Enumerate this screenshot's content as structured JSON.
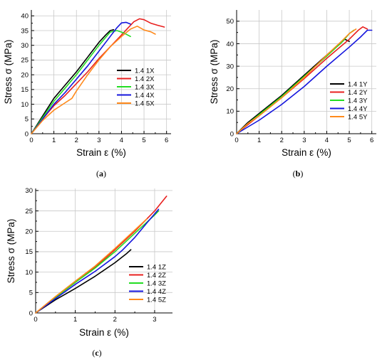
{
  "chart_data": [
    {
      "type": "line",
      "panel_label": "(a)",
      "panel_letter": "a",
      "xlabel": "Strain ε (%)",
      "ylabel": "Stress σ (MPa)",
      "xlim": [
        0,
        6.2
      ],
      "ylim": [
        0,
        42
      ],
      "xticks": [
        0,
        1,
        2,
        3,
        4,
        5,
        6
      ],
      "yticks": [
        0,
        5,
        10,
        15,
        20,
        25,
        30,
        35,
        40
      ],
      "grid": true,
      "legend_position": "center-right",
      "series": [
        {
          "name": "1.4 1X",
          "color": "#000000",
          "x": [
            0,
            0.5,
            1,
            1.5,
            2,
            2.5,
            3,
            3.3,
            3.5,
            3.65
          ],
          "y": [
            0,
            6,
            12,
            16.5,
            21,
            26,
            31,
            33.5,
            35,
            35.3
          ]
        },
        {
          "name": "1.4 2X",
          "color": "#e8201f",
          "x": [
            0,
            0.5,
            1,
            1.5,
            2,
            2.5,
            3,
            3.5,
            4,
            4.3,
            4.55,
            4.8,
            5,
            5.3,
            5.6,
            5.9
          ],
          "y": [
            0,
            5,
            9.5,
            13,
            17,
            21,
            25.5,
            29.5,
            33.5,
            36,
            38,
            39,
            38.7,
            37.5,
            36.8,
            36.2
          ]
        },
        {
          "name": "1.4 3X",
          "color": "#22dd22",
          "x": [
            0,
            0.5,
            1,
            1.5,
            2,
            2.5,
            3,
            3.5,
            3.8,
            4.1,
            4.4
          ],
          "y": [
            0,
            5.5,
            11,
            15.5,
            20,
            25,
            30,
            34.5,
            35,
            34.2,
            33
          ]
        },
        {
          "name": "1.4 4X",
          "color": "#1515dd",
          "x": [
            0,
            0.5,
            1,
            1.5,
            2,
            2.5,
            3,
            3.5,
            3.8,
            4,
            4.2,
            4.4
          ],
          "y": [
            0,
            5,
            10,
            14,
            18.5,
            23,
            28,
            33,
            36,
            37.6,
            37.8,
            37.2
          ]
        },
        {
          "name": "1.4 5X",
          "color": "#ff8a1c",
          "x": [
            0,
            0.5,
            1,
            1.5,
            1.8,
            2,
            2.5,
            3,
            3.5,
            4,
            4.4,
            4.7,
            5,
            5.3,
            5.5
          ],
          "y": [
            0,
            4.5,
            8,
            10.5,
            12,
            14.5,
            20,
            25,
            29.5,
            33,
            35.5,
            36.5,
            35.2,
            34.6,
            33.8
          ]
        }
      ]
    },
    {
      "type": "line",
      "panel_label": "(b)",
      "panel_letter": "b",
      "xlabel": "Strain ε (%)",
      "ylabel": "Stress σ (MPa)",
      "xlim": [
        0,
        6.2
      ],
      "ylim": [
        0,
        55
      ],
      "xticks": [
        0,
        1,
        2,
        3,
        4,
        5,
        6
      ],
      "yticks": [
        0,
        10,
        20,
        30,
        40,
        50
      ],
      "grid": true,
      "legend_position": "center-right",
      "series": [
        {
          "name": "1.4 1Y",
          "color": "#000000",
          "x": [
            0,
            0.5,
            1,
            2,
            3,
            4,
            4.6,
            4.8,
            5.0
          ],
          "y": [
            0,
            5,
            9,
            17,
            26,
            35,
            40,
            42,
            41
          ]
        },
        {
          "name": "1.4 2Y",
          "color": "#e8201f",
          "x": [
            0,
            0.5,
            1,
            2,
            3,
            4,
            5,
            5.4,
            5.6,
            5.8
          ],
          "y": [
            0,
            4,
            8,
            16,
            24.5,
            33.5,
            42,
            46,
            47.5,
            46.5
          ]
        },
        {
          "name": "1.4 3Y",
          "color": "#22dd22",
          "x": [
            0,
            0.5,
            1,
            2,
            3,
            4,
            4.7,
            5.0,
            5.2
          ],
          "y": [
            0,
            4.5,
            8.5,
            16.5,
            25.5,
            34.5,
            41,
            44.5,
            46
          ]
        },
        {
          "name": "1.4 4Y",
          "color": "#1515dd",
          "x": [
            0,
            0.5,
            1,
            2,
            3,
            4,
            5,
            5.5,
            5.8,
            6.0
          ],
          "y": [
            0,
            3,
            6,
            13,
            21,
            30,
            38.5,
            43,
            46,
            46
          ]
        },
        {
          "name": "1.4 5Y",
          "color": "#ff8a1c",
          "x": [
            0,
            0.5,
            1,
            2,
            3,
            4,
            4.7,
            5.0,
            5.3
          ],
          "y": [
            0,
            4.5,
            8,
            16,
            25,
            35,
            41.5,
            44.5,
            46.5
          ]
        }
      ]
    },
    {
      "type": "line",
      "panel_label": "(c)",
      "panel_letter": "c",
      "xlabel": "Strain ε (%)",
      "ylabel": "Stress σ (MPa)",
      "xlim": [
        0,
        3.45
      ],
      "ylim": [
        0,
        30.5
      ],
      "xticks": [
        0,
        1,
        2,
        3
      ],
      "yticks": [
        0,
        5,
        10,
        15,
        20,
        25,
        30
      ],
      "grid": true,
      "legend_position": "center-right",
      "series": [
        {
          "name": "1.4 1Z",
          "color": "#000000",
          "x": [
            0,
            0.5,
            1,
            1.5,
            2,
            2.3,
            2.4
          ],
          "y": [
            0,
            3.2,
            6,
            9,
            12.3,
            14.6,
            15.5
          ]
        },
        {
          "name": "1.4 2Z",
          "color": "#e8201f",
          "x": [
            0,
            0.5,
            1,
            1.5,
            2,
            2.5,
            3,
            3.3
          ],
          "y": [
            0,
            3.8,
            7.5,
            11.2,
            15.5,
            20,
            25,
            28.6
          ]
        },
        {
          "name": "1.4 3Z",
          "color": "#22dd22",
          "x": [
            0,
            0.5,
            1,
            1.5,
            2,
            2.5,
            3.0,
            3.1
          ],
          "y": [
            0,
            3.8,
            7.5,
            11,
            15,
            19.5,
            24,
            25
          ]
        },
        {
          "name": "1.4 4Z",
          "color": "#1515dd",
          "x": [
            0,
            0.5,
            1,
            1.5,
            2,
            2.2,
            2.5,
            2.8,
            3.1
          ],
          "y": [
            0,
            3.5,
            7,
            10.2,
            13.8,
            15.5,
            18.5,
            22,
            25.4
          ]
        },
        {
          "name": "1.4 5Z",
          "color": "#ff8a1c",
          "x": [
            0,
            0.5,
            1,
            1.5,
            2,
            2.5,
            2.8
          ],
          "y": [
            0,
            4,
            7.8,
            11.5,
            15.8,
            20.3,
            23
          ]
        }
      ]
    }
  ]
}
